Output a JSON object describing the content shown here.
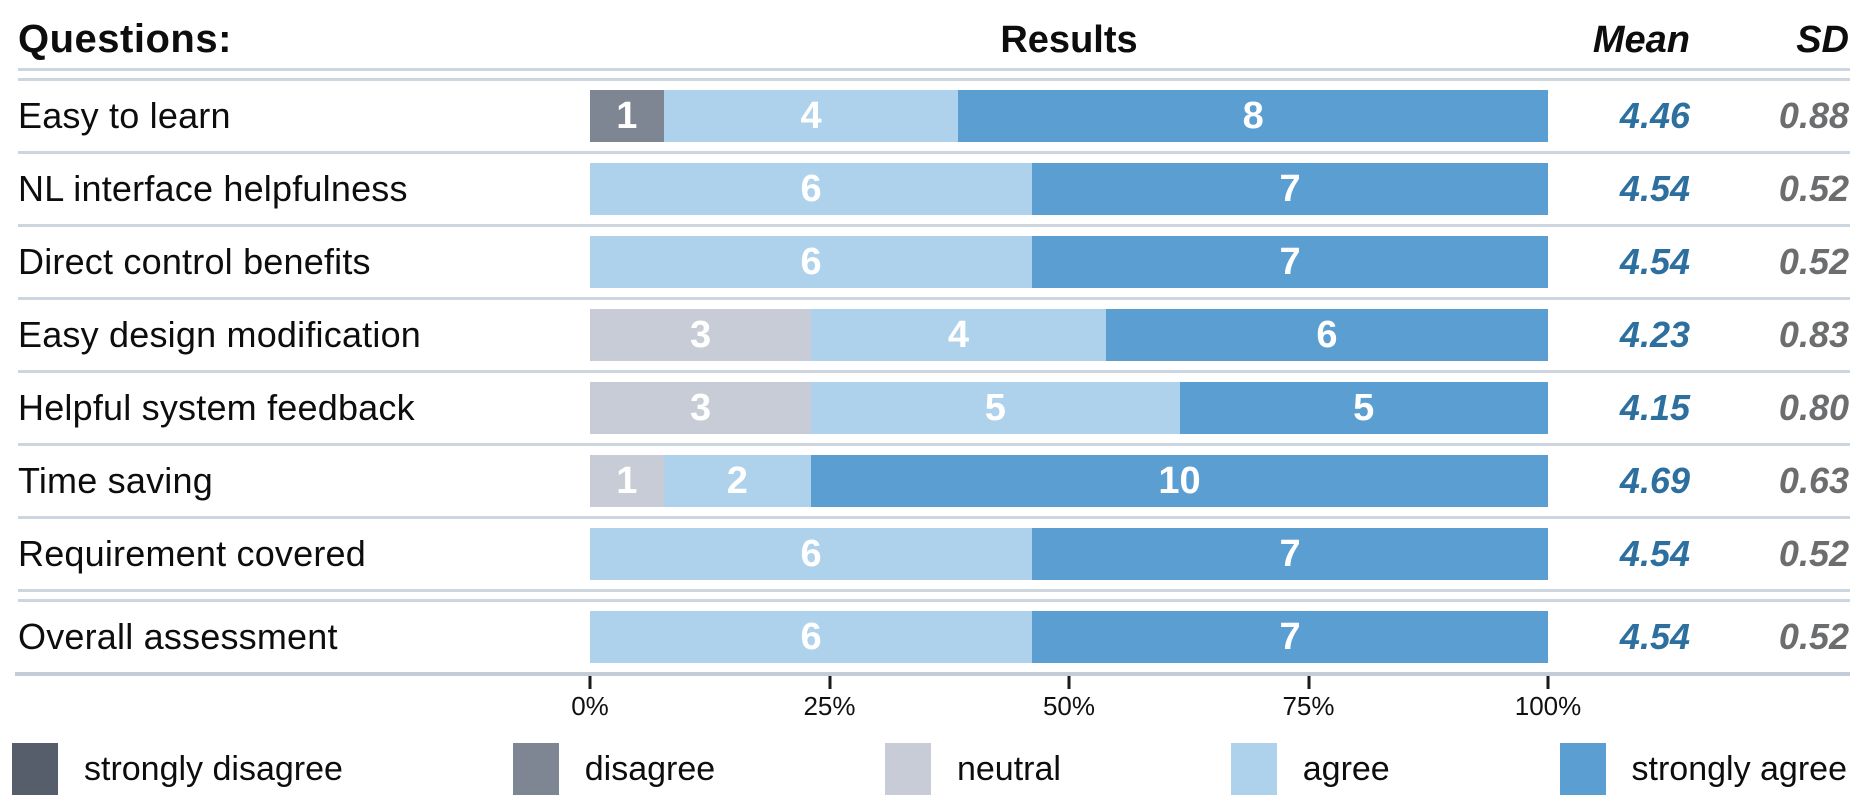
{
  "header": {
    "questions": "Questions:",
    "results": "Results",
    "mean": "Mean",
    "sd": "SD"
  },
  "colors": {
    "strongly_disagree": "#565e6b",
    "disagree": "#7e8593",
    "neutral": "#c7ccd6",
    "agree": "#aed2ec",
    "strongly_agree": "#5b9ed2",
    "mean_text": "#2d6f9e",
    "sd_text": "#6c6d6f",
    "separator": "#cdd6de"
  },
  "rows": [
    {
      "label": "Easy to learn",
      "segments": [
        {
          "key": "disagree",
          "count": 1
        },
        {
          "key": "agree",
          "count": 4
        },
        {
          "key": "strongly_agree",
          "count": 8
        }
      ],
      "mean": "4.46",
      "sd": "0.88"
    },
    {
      "label": "NL interface helpfulness",
      "segments": [
        {
          "key": "agree",
          "count": 6
        },
        {
          "key": "strongly_agree",
          "count": 7
        }
      ],
      "mean": "4.54",
      "sd": "0.52"
    },
    {
      "label": "Direct control benefits",
      "segments": [
        {
          "key": "agree",
          "count": 6
        },
        {
          "key": "strongly_agree",
          "count": 7
        }
      ],
      "mean": "4.54",
      "sd": "0.52"
    },
    {
      "label": "Easy design modification",
      "segments": [
        {
          "key": "neutral",
          "count": 3
        },
        {
          "key": "agree",
          "count": 4
        },
        {
          "key": "strongly_agree",
          "count": 6
        }
      ],
      "mean": "4.23",
      "sd": "0.83"
    },
    {
      "label": "Helpful system feedback",
      "segments": [
        {
          "key": "neutral",
          "count": 3
        },
        {
          "key": "agree",
          "count": 5
        },
        {
          "key": "strongly_agree",
          "count": 5
        }
      ],
      "mean": "4.15",
      "sd": "0.80"
    },
    {
      "label": "Time saving",
      "segments": [
        {
          "key": "neutral",
          "count": 1
        },
        {
          "key": "agree",
          "count": 2
        },
        {
          "key": "strongly_agree",
          "count": 10
        }
      ],
      "mean": "4.69",
      "sd": "0.63"
    },
    {
      "label": "Requirement covered",
      "segments": [
        {
          "key": "agree",
          "count": 6
        },
        {
          "key": "strongly_agree",
          "count": 7
        }
      ],
      "mean": "4.54",
      "sd": "0.52"
    },
    {
      "label": "Overall assessment",
      "segments": [
        {
          "key": "agree",
          "count": 6
        },
        {
          "key": "strongly_agree",
          "count": 7
        }
      ],
      "mean": "4.54",
      "sd": "0.52"
    }
  ],
  "scale": {
    "ticks": [
      "0%",
      "25%",
      "50%",
      "75%",
      "100%"
    ]
  },
  "legend": [
    {
      "key": "strongly_disagree",
      "label": "strongly disagree"
    },
    {
      "key": "disagree",
      "label": "disagree"
    },
    {
      "key": "neutral",
      "label": "neutral"
    },
    {
      "key": "agree",
      "label": "agree"
    },
    {
      "key": "strongly_agree",
      "label": "strongly agree"
    }
  ],
  "chart_data": {
    "type": "bar",
    "stacked": true,
    "orientation": "horizontal",
    "normalized_to": "100%",
    "total_responses": 13,
    "title": "Results",
    "categories": [
      "Easy to learn",
      "NL interface helpfulness",
      "Direct control benefits",
      "Easy design modification",
      "Helpful system feedback",
      "Time saving",
      "Requirement covered",
      "Overall assessment"
    ],
    "series": [
      {
        "name": "strongly disagree",
        "color": "#565e6b",
        "values": [
          0,
          0,
          0,
          0,
          0,
          0,
          0,
          0
        ]
      },
      {
        "name": "disagree",
        "color": "#7e8593",
        "values": [
          1,
          0,
          0,
          0,
          0,
          0,
          0,
          0
        ]
      },
      {
        "name": "neutral",
        "color": "#c7ccd6",
        "values": [
          0,
          0,
          0,
          3,
          3,
          1,
          0,
          0
        ]
      },
      {
        "name": "agree",
        "color": "#aed2ec",
        "values": [
          4,
          6,
          6,
          4,
          5,
          2,
          6,
          6
        ]
      },
      {
        "name": "strongly agree",
        "color": "#5b9ed2",
        "values": [
          8,
          7,
          7,
          6,
          5,
          10,
          7,
          7
        ]
      }
    ],
    "mean": [
      4.46,
      4.54,
      4.54,
      4.23,
      4.15,
      4.69,
      4.54,
      4.54
    ],
    "sd": [
      0.88,
      0.52,
      0.52,
      0.83,
      0.8,
      0.63,
      0.52,
      0.52
    ],
    "xlabel": "",
    "ylabel": "",
    "x_ticks": [
      "0%",
      "25%",
      "50%",
      "75%",
      "100%"
    ],
    "xlim": [
      0,
      100
    ],
    "grid": false,
    "legend_position": "bottom"
  }
}
